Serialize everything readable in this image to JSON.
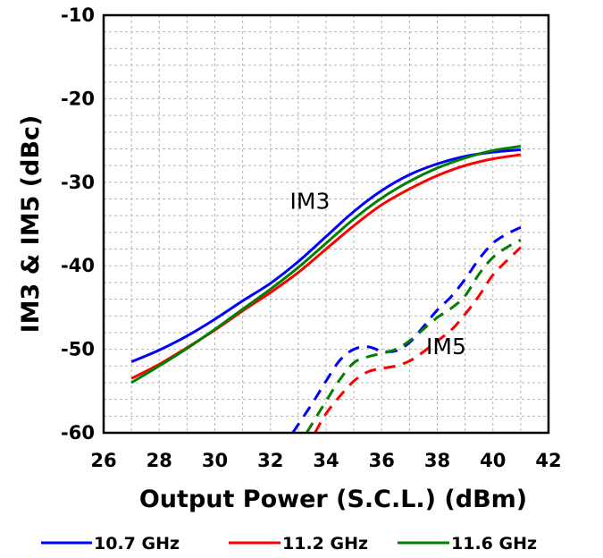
{
  "chart_data": {
    "type": "line",
    "title": "",
    "xlabel": "Output Power (S.C.L.) (dBm)",
    "ylabel": "IM3 & IM5 (dBc)",
    "xlim": [
      26,
      42
    ],
    "ylim": [
      -60,
      -10
    ],
    "xticks": [
      26,
      28,
      30,
      32,
      34,
      36,
      38,
      40,
      42
    ],
    "yticks": [
      -10,
      -20,
      -30,
      -40,
      -50,
      -60
    ],
    "grid": true,
    "legend_position": "bottom",
    "annotations": [
      {
        "text": "IM3",
        "x": 32.7,
        "y": -33.2
      },
      {
        "text": "IM5",
        "x": 37.6,
        "y": -50.6
      }
    ],
    "colors": {
      "10.7 GHz": "#0000ff",
      "11.2 GHz": "#ff0000",
      "11.6 GHz": "#008000"
    },
    "series": [
      {
        "name": "10.7 GHz",
        "metric": "IM3",
        "color": "#0000ff",
        "style": "solid",
        "x": [
          27,
          28,
          29,
          30,
          31,
          32,
          33,
          34,
          35,
          36,
          37,
          38,
          39,
          40,
          41
        ],
        "y": [
          -51.5,
          -50.1,
          -48.4,
          -46.4,
          -44.2,
          -42.1,
          -39.5,
          -36.5,
          -33.5,
          -31.0,
          -29.1,
          -27.8,
          -26.9,
          -26.4,
          -26.1
        ]
      },
      {
        "name": "11.2 GHz",
        "metric": "IM3",
        "color": "#ff0000",
        "style": "solid",
        "x": [
          27,
          28,
          29,
          30,
          31,
          32,
          33,
          34,
          35,
          36,
          37,
          38,
          39,
          40,
          41
        ],
        "y": [
          -53.5,
          -51.8,
          -49.8,
          -47.7,
          -45.4,
          -43.2,
          -40.8,
          -38.0,
          -35.2,
          -32.7,
          -30.8,
          -29.2,
          -28.0,
          -27.2,
          -26.7
        ]
      },
      {
        "name": "11.6 GHz",
        "metric": "IM3",
        "color": "#008000",
        "style": "solid",
        "x": [
          27,
          28,
          29,
          30,
          31,
          32,
          33,
          34,
          35,
          36,
          37,
          38,
          39,
          40,
          41
        ],
        "y": [
          -54.0,
          -52.0,
          -49.9,
          -47.6,
          -45.2,
          -42.8,
          -40.2,
          -37.3,
          -34.4,
          -31.9,
          -29.9,
          -28.3,
          -27.1,
          -26.2,
          -25.7
        ]
      },
      {
        "name": "10.7 GHz",
        "metric": "IM5",
        "color": "#0000ff",
        "style": "dashed",
        "x": [
          32.8,
          33.5,
          34.0,
          34.5,
          35.0,
          35.5,
          36.0,
          36.5,
          37.0,
          37.5,
          38.0,
          38.5,
          39.0,
          39.5,
          40.0,
          40.5,
          41.0
        ],
        "y": [
          -60.0,
          -56.5,
          -53.8,
          -51.3,
          -50.0,
          -49.7,
          -50.2,
          -50.2,
          -49.2,
          -47.3,
          -45.3,
          -43.7,
          -41.6,
          -39.2,
          -37.3,
          -36.2,
          -35.4
        ]
      },
      {
        "name": "11.2 GHz",
        "metric": "IM5",
        "color": "#ff0000",
        "style": "dashed",
        "x": [
          33.6,
          34.0,
          34.5,
          35.0,
          35.5,
          36.0,
          36.5,
          37.0,
          37.5,
          38.0,
          38.5,
          39.0,
          39.5,
          40.0,
          40.5,
          41.0
        ],
        "y": [
          -60.0,
          -57.7,
          -55.6,
          -53.8,
          -52.7,
          -52.3,
          -52.0,
          -51.4,
          -50.3,
          -49.0,
          -47.7,
          -45.8,
          -43.6,
          -41.1,
          -39.4,
          -37.8
        ]
      },
      {
        "name": "11.6 GHz",
        "metric": "IM5",
        "color": "#008000",
        "style": "dashed",
        "x": [
          33.3,
          34.0,
          34.5,
          35.0,
          35.5,
          36.0,
          36.5,
          37.0,
          37.5,
          38.0,
          38.5,
          39.0,
          39.5,
          40.0,
          40.5,
          41.0
        ],
        "y": [
          -60.0,
          -56.2,
          -53.6,
          -51.6,
          -50.9,
          -50.5,
          -50.0,
          -49.0,
          -47.6,
          -46.2,
          -45.1,
          -43.6,
          -41.0,
          -39.0,
          -37.8,
          -36.9
        ]
      }
    ]
  }
}
